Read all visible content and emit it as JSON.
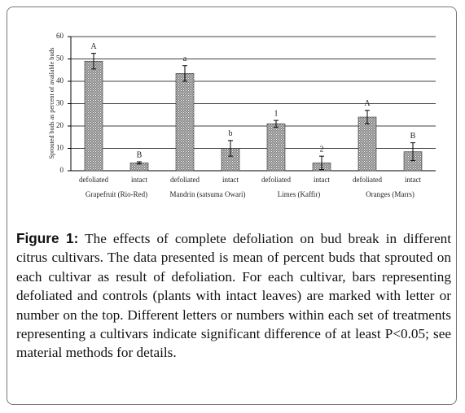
{
  "chart_data": {
    "type": "bar",
    "y_label": "Sprouted buds as percent of available buds",
    "categories": [
      "defoliated",
      "intact",
      "defoliated",
      "intact",
      "defoliated",
      "intact",
      "defoliated",
      "intact"
    ],
    "groups": [
      "Grapefruit (Rio-Red)",
      "Mandrin (satsuma Owari)",
      "Limes (Kaffir)",
      "Oranges (Marrs)"
    ],
    "values": [
      49,
      3.5,
      43.5,
      10,
      21,
      3.5,
      24,
      8.5
    ],
    "errors": [
      3.5,
      0.5,
      3.5,
      3.5,
      1.5,
      3,
      3,
      4
    ],
    "letters": [
      "A",
      "B",
      "a",
      "b",
      "1",
      "2",
      "A",
      "B"
    ],
    "color": "#888888",
    "ylim": [
      0,
      60
    ],
    "yticks": [
      0,
      10,
      20,
      30,
      40,
      50,
      60
    ],
    "grid": true
  },
  "caption": {
    "label": "Figure 1:",
    "text": "The effects of complete defoliation on bud break in different citrus cultivars. The data presented is mean of percent buds that sprouted on each cultivar as result of defoliation. For each cultivar, bars representing defoliated and controls (plants with intact leaves) are marked with letter or number on the top. Different letters or numbers within each set of treatments representing a cultivars indicate significant difference of at least P<0.05; see material methods for details."
  }
}
